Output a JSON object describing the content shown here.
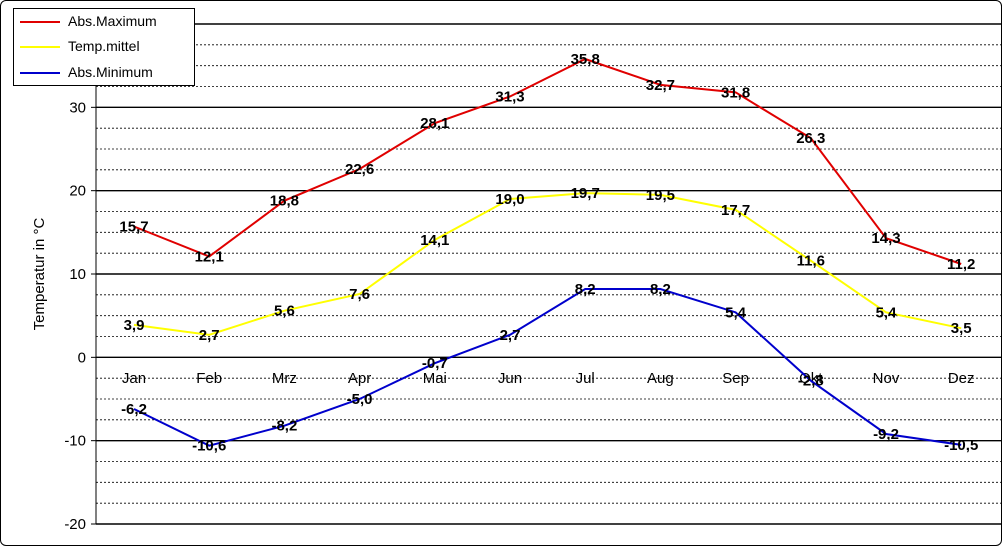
{
  "chart_data": {
    "type": "line",
    "categories": [
      "Jan",
      "Feb",
      "Mrz",
      "Apr",
      "Mai",
      "Jun",
      "Jul",
      "Aug",
      "Sep",
      "Okt",
      "Nov",
      "Dez"
    ],
    "series": [
      {
        "name": "Abs.Maximum",
        "color": "#e00000",
        "values": [
          15.7,
          12.1,
          18.8,
          22.6,
          28.1,
          31.3,
          35.8,
          32.7,
          31.8,
          26.3,
          14.3,
          11.2
        ],
        "labels": [
          "15,7",
          "12,1",
          "18,8",
          "22,6",
          "28,1",
          "31,3",
          "35,8",
          "32,7",
          "31,8",
          "26,3",
          "14,3",
          "11,2"
        ]
      },
      {
        "name": "Temp.mittel",
        "color": "#ffff00",
        "values": [
          3.9,
          2.7,
          5.6,
          7.6,
          14.1,
          19.0,
          19.7,
          19.5,
          17.7,
          11.6,
          5.4,
          3.5
        ],
        "labels": [
          "3,9",
          "2,7",
          "5,6",
          "7,6",
          "14,1",
          "19,0",
          "19,7",
          "19,5",
          "17,7",
          "11,6",
          "5,4",
          "3,5"
        ]
      },
      {
        "name": "Abs.Minimum",
        "color": "#0000cc",
        "values": [
          -6.2,
          -10.6,
          -8.2,
          -5.0,
          -0.7,
          2.7,
          8.2,
          8.2,
          5.4,
          -2.8,
          -9.2,
          -10.5
        ],
        "labels": [
          "-6,2",
          "-10,6",
          "-8,2",
          "-5,0",
          "-0,7",
          "2,7",
          "8,2",
          "8,2",
          "5,4",
          "-2,8",
          "-9,2",
          "-10,5"
        ]
      }
    ],
    "ylabel": "Temperatur  in °C",
    "xlabel": "",
    "title": "",
    "ylim": [
      -20,
      40
    ],
    "yticks": [
      "-20",
      "-10",
      "0",
      "10",
      "20",
      "30"
    ],
    "grid": "major and minor horizontal",
    "legend_position": "top-left"
  }
}
